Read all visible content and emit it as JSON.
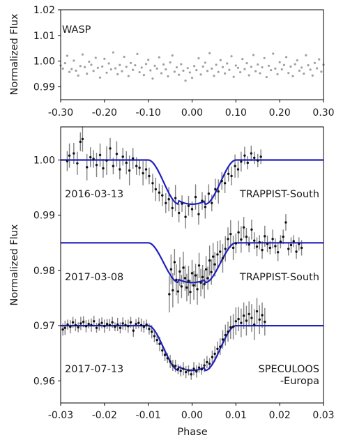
{
  "chart_data": [
    {
      "type": "scatter",
      "panel": "top",
      "label": "WASP",
      "ylabel": "Normalized Flux",
      "xlim": [
        -0.3,
        0.3
      ],
      "ylim": [
        0.985,
        1.02
      ],
      "xticks": [
        -0.3,
        -0.2,
        -0.1,
        0.0,
        0.1,
        0.2,
        0.3
      ],
      "xtick_labels": [
        "-0.30",
        "-0.20",
        "-0.10",
        "0.00",
        "0.10",
        "0.20",
        "0.30"
      ],
      "yticks": [
        0.99,
        1.0,
        1.01,
        1.02
      ],
      "ytick_labels": [
        "0.99",
        "1.00",
        "1.01",
        "1.02"
      ],
      "points_color": "#a0a0a0",
      "grid": false,
      "series": [
        {
          "x": [
            -0.3,
            -0.295,
            -0.29,
            -0.285,
            -0.28,
            -0.275,
            -0.27,
            -0.265,
            -0.26,
            -0.255,
            -0.25,
            -0.245,
            -0.24,
            -0.235,
            -0.23,
            -0.225,
            -0.22,
            -0.215,
            -0.21,
            -0.205,
            -0.2,
            -0.195,
            -0.19,
            -0.185,
            -0.18,
            -0.175,
            -0.17,
            -0.165,
            -0.16,
            -0.155,
            -0.15,
            -0.145,
            -0.14,
            -0.135,
            -0.13,
            -0.125,
            -0.12,
            -0.115,
            -0.11,
            -0.105,
            -0.1,
            -0.095,
            -0.09,
            -0.085,
            -0.08,
            -0.075,
            -0.07,
            -0.065,
            -0.06,
            -0.055,
            -0.05,
            -0.045,
            -0.04,
            -0.035,
            -0.03,
            -0.025,
            -0.02,
            -0.015,
            -0.01,
            -0.005,
            0.0,
            0.005,
            0.01,
            0.015,
            0.02,
            0.025,
            0.03,
            0.035,
            0.04,
            0.045,
            0.05,
            0.055,
            0.06,
            0.065,
            0.07,
            0.075,
            0.08,
            0.085,
            0.09,
            0.095,
            0.1,
            0.105,
            0.11,
            0.115,
            0.12,
            0.125,
            0.13,
            0.135,
            0.14,
            0.145,
            0.15,
            0.155,
            0.16,
            0.165,
            0.17,
            0.175,
            0.18,
            0.185,
            0.19,
            0.195,
            0.2,
            0.205,
            0.21,
            0.215,
            0.22,
            0.225,
            0.23,
            0.235,
            0.24,
            0.245,
            0.25,
            0.255,
            0.26,
            0.265,
            0.27,
            0.275,
            0.28,
            0.285,
            0.29,
            0.295,
            0.3
          ],
          "y": [
            0.9983,
            0.9971,
            0.9992,
            1.0021,
            0.9958,
            0.9969,
            1.0002,
            0.9963,
            0.9944,
            0.9981,
            1.0026,
            0.9977,
            0.9951,
            0.9998,
            0.9986,
            0.9962,
            1.0013,
            0.9974,
            0.9936,
            0.9979,
            1.0009,
            0.9955,
            0.9991,
            0.9968,
            1.0034,
            0.9972,
            0.9949,
            0.9985,
            0.9961,
            1.0017,
            0.9978,
            0.9942,
            0.9993,
            0.9966,
            0.9984,
            1.0028,
            0.9957,
            0.9975,
            0.9946,
            0.9989,
            1.0005,
            0.9964,
            0.9932,
            0.9982,
            0.9971,
            1.0015,
            0.9953,
            0.9987,
            0.9968,
            0.9941,
            0.9995,
            1.0022,
            0.9959,
            0.9976,
            0.9947,
            0.9988,
            0.9963,
            0.9924,
            0.9973,
            0.9956,
            0.9935,
            0.9981,
            0.9965,
            1.0011,
            0.9948,
            0.9979,
            0.9994,
            0.9962,
            1.0031,
            0.9971,
            0.9943,
            0.9986,
            0.9958,
            1.0004,
            0.9977,
            0.9952,
            0.9991,
            0.9966,
            1.0019,
            0.9939,
            0.9983,
            0.9974,
            0.9957,
            1.0008,
            0.9969,
            0.9992,
            0.9945,
            0.9978,
            1.0024,
            0.9961,
            0.9987,
            0.9953,
            0.9976,
            1.0012,
            0.9938,
            0.9982,
            0.9965,
            1.0029,
            0.9971,
            0.9949,
            0.9996,
            0.9968,
            0.9985,
            1.0016,
            0.9954,
            0.9979,
            0.9942,
            0.9988,
            1.0003,
            0.9963,
            0.9975,
            0.9951,
            1.0023,
            0.9984,
            0.9967,
            0.9944,
            0.9993,
            0.9972,
            1.0007,
            0.9959,
            0.9986
          ]
        }
      ]
    },
    {
      "type": "scatter",
      "panel": "bottom",
      "xlabel": "Phase",
      "ylabel": "Normalized Flux",
      "xlim": [
        -0.03,
        0.03
      ],
      "ylim": [
        0.956,
        1.006
      ],
      "xticks": [
        -0.03,
        -0.02,
        -0.01,
        0.0,
        0.01,
        0.02,
        0.03
      ],
      "xtick_labels": [
        "-0.03",
        "-0.02",
        "-0.01",
        "0.00",
        "0.01",
        "0.02",
        "0.03"
      ],
      "yticks": [
        0.96,
        0.97,
        0.98,
        0.99,
        1.0
      ],
      "ytick_labels": [
        "0.96",
        "0.97",
        "0.98",
        "0.99",
        "1.00"
      ],
      "model_color": "#1f1fbf",
      "grid": false,
      "series": [
        {
          "date": "2016-03-13",
          "instrument": "TRAPPIST-South",
          "baseline": 1.0,
          "depth": 0.008,
          "x": [
            -0.0285,
            -0.028,
            -0.027,
            -0.0262,
            -0.0255,
            -0.025,
            -0.024,
            -0.0232,
            -0.0225,
            -0.0218,
            -0.021,
            -0.0203,
            -0.0195,
            -0.0187,
            -0.018,
            -0.0172,
            -0.0165,
            -0.0158,
            -0.015,
            -0.0143,
            -0.0135,
            -0.0127,
            -0.012,
            -0.0112,
            -0.0105,
            -0.0098,
            -0.009,
            -0.0083,
            -0.0075,
            -0.0068,
            -0.006,
            -0.0053,
            -0.0045,
            -0.0038,
            -0.003,
            -0.0023,
            -0.0015,
            -0.0008,
            0.0,
            0.0008,
            0.0015,
            0.0023,
            0.003,
            0.0038,
            0.0045,
            0.0053,
            0.006,
            0.0068,
            0.0075,
            0.0083,
            0.009,
            0.0098,
            0.0105,
            0.0112,
            0.012,
            0.0127,
            0.0135,
            0.0142,
            0.015,
            0.0157
          ],
          "y": [
            0.9998,
            1.0008,
            1.0012,
            0.9994,
            1.0033,
            1.0038,
            0.9987,
            1.0005,
            1.0002,
            0.9991,
            1.0009,
            0.9985,
            0.9999,
            1.0021,
            0.9989,
            1.0011,
            0.9983,
            1.0006,
            0.9995,
            0.9981,
            1.0003,
            0.9989,
            0.9986,
            0.9976,
            0.9983,
            0.9971,
            0.9958,
            0.9947,
            0.9941,
            0.9936,
            0.9922,
            0.9929,
            0.9913,
            0.9931,
            0.9904,
            0.9921,
            0.9897,
            0.9917,
            0.9911,
            0.9933,
            0.9902,
            0.9926,
            0.9915,
            0.9939,
            0.9922,
            0.9947,
            0.9943,
            0.9962,
            0.9958,
            0.9975,
            0.9971,
            0.9989,
            0.9983,
            0.9997,
            1.0008,
            0.9995,
            1.0012,
            1.0004,
            0.9999,
            1.0006
          ],
          "err": [
            0.0018,
            0.0022,
            0.0019,
            0.0021,
            0.0017,
            0.0023,
            0.0024,
            0.0018,
            0.0016,
            0.0022,
            0.0021,
            0.0017,
            0.0026,
            0.0019,
            0.0015,
            0.0023,
            0.0018,
            0.0016,
            0.0021,
            0.0027,
            0.0019,
            0.0016,
            0.0014,
            0.0022,
            0.0018,
            0.0015,
            0.0017,
            0.0021,
            0.0016,
            0.0019,
            0.0018,
            0.0022,
            0.0016,
            0.0024,
            0.0017,
            0.0015,
            0.0021,
            0.0018,
            0.0014,
            0.0023,
            0.0019,
            0.0016,
            0.0021,
            0.0017,
            0.0015,
            0.0019,
            0.0022,
            0.0016,
            0.0018,
            0.0014,
            0.0017,
            0.0021,
            0.0015,
            0.0018,
            0.0016,
            0.0012,
            0.0014,
            0.0011,
            0.0012,
            0.0013
          ]
        },
        {
          "date": "2017-03-08",
          "instrument": "TRAPPIST-South",
          "baseline": 0.985,
          "depth": 0.0072,
          "x": [
            -0.0052,
            -0.0048,
            -0.0044,
            -0.004,
            -0.0036,
            -0.0032,
            -0.0028,
            -0.0024,
            -0.002,
            -0.0016,
            -0.0012,
            -0.0008,
            -0.0004,
            0.0,
            0.0004,
            0.0008,
            0.0012,
            0.0016,
            0.002,
            0.0024,
            0.0028,
            0.0032,
            0.0036,
            0.004,
            0.0044,
            0.0048,
            0.0052,
            0.0058,
            0.0064,
            0.007,
            0.0076,
            0.0082,
            0.0088,
            0.0094,
            0.01,
            0.0106,
            0.0112,
            0.0118,
            0.0124,
            0.013,
            0.0136,
            0.0142,
            0.0148,
            0.0154,
            0.016,
            0.0166,
            0.0172,
            0.0178,
            0.0184,
            0.019,
            0.0196,
            0.0202,
            0.0208,
            0.0214,
            0.022,
            0.0226,
            0.0232,
            0.0238,
            0.0244,
            0.025
          ],
          "y": [
            0.9757,
            0.9802,
            0.9764,
            0.9815,
            0.9783,
            0.9762,
            0.9798,
            0.9771,
            0.9805,
            0.9786,
            0.9769,
            0.9781,
            0.9761,
            0.9795,
            0.9773,
            0.9791,
            0.9766,
            0.9809,
            0.9778,
            0.9788,
            0.9775,
            0.9802,
            0.9786,
            0.9818,
            0.9797,
            0.9825,
            0.9811,
            0.9829,
            0.9834,
            0.9822,
            0.9839,
            0.9857,
            0.9866,
            0.9841,
            0.9849,
            0.9869,
            0.9856,
            0.9878,
            0.9861,
            0.9847,
            0.9874,
            0.9854,
            0.9843,
            0.9851,
            0.9837,
            0.9862,
            0.9848,
            0.9841,
            0.9857,
            0.9844,
            0.9833,
            0.9852,
            0.9861,
            0.9887,
            0.9839,
            0.9846,
            0.9853,
            0.9834,
            0.9848,
            0.9841
          ],
          "err": [
            0.0033,
            0.0027,
            0.0031,
            0.0024,
            0.0028,
            0.0022,
            0.0026,
            0.0021,
            0.0029,
            0.0023,
            0.0025,
            0.0027,
            0.0022,
            0.0024,
            0.0026,
            0.0021,
            0.0028,
            0.0023,
            0.0025,
            0.0022,
            0.0026,
            0.0024,
            0.0021,
            0.0027,
            0.0023,
            0.0025,
            0.0022,
            0.0024,
            0.0021,
            0.0026,
            0.0023,
            0.0021,
            0.0025,
            0.0022,
            0.0018,
            0.0021,
            0.0024,
            0.0019,
            0.0016,
            0.0014,
            0.0018,
            0.0015,
            0.0017,
            0.0013,
            0.0016,
            0.0019,
            0.0015,
            0.0012,
            0.0017,
            0.0014,
            0.0016,
            0.0012,
            0.0013,
            0.0015,
            0.0012,
            0.0014,
            0.0011,
            0.0013,
            0.0012,
            0.0014
          ]
        },
        {
          "date": "2017-07-13",
          "instrument": "SPECULOOS\n-Europa",
          "baseline": 0.97,
          "depth": 0.0081,
          "x": [
            -0.0295,
            -0.029,
            -0.0284,
            -0.0278,
            -0.0272,
            -0.0266,
            -0.026,
            -0.0254,
            -0.0248,
            -0.0242,
            -0.0236,
            -0.023,
            -0.0224,
            -0.0218,
            -0.0212,
            -0.0206,
            -0.02,
            -0.0194,
            -0.0188,
            -0.0182,
            -0.0176,
            -0.017,
            -0.0164,
            -0.0158,
            -0.0152,
            -0.0146,
            -0.014,
            -0.0134,
            -0.0128,
            -0.0122,
            -0.0116,
            -0.011,
            -0.0104,
            -0.0098,
            -0.0092,
            -0.0086,
            -0.008,
            -0.0074,
            -0.0068,
            -0.0062,
            -0.0056,
            -0.005,
            -0.0044,
            -0.0038,
            -0.0032,
            -0.0026,
            -0.002,
            -0.0014,
            -0.0008,
            -0.0002,
            0.0004,
            0.001,
            0.0016,
            0.0022,
            0.0028,
            0.0034,
            0.004,
            0.0046,
            0.0052,
            0.0058,
            0.0064,
            0.007,
            0.0076,
            0.0082,
            0.0088,
            0.0094,
            0.01,
            0.0106,
            0.0112,
            0.0118,
            0.0124,
            0.013,
            0.0136,
            0.0142,
            0.0148,
            0.0154,
            0.016,
            0.0166
          ],
          "y": [
            0.9693,
            0.9696,
            0.9702,
            0.9698,
            0.9706,
            0.9701,
            0.9697,
            0.9704,
            0.9707,
            0.9699,
            0.9703,
            0.9701,
            0.9708,
            0.9696,
            0.9702,
            0.9705,
            0.9699,
            0.9703,
            0.9701,
            0.9706,
            0.9698,
            0.9702,
            0.9696,
            0.9704,
            0.9701,
            0.9699,
            0.9706,
            0.9691,
            0.9703,
            0.9705,
            0.9701,
            0.9698,
            0.9702,
            0.9694,
            0.9689,
            0.9681,
            0.9674,
            0.9667,
            0.9655,
            0.9647,
            0.9641,
            0.9635,
            0.9628,
            0.9627,
            0.9621,
            0.9618,
            0.9622,
            0.9616,
            0.9619,
            0.9612,
            0.9622,
            0.9617,
            0.9624,
            0.9621,
            0.9628,
            0.9634,
            0.9631,
            0.9643,
            0.9649,
            0.9658,
            0.9662,
            0.9675,
            0.9683,
            0.9689,
            0.9697,
            0.9698,
            0.9708,
            0.9712,
            0.9705,
            0.9718,
            0.9709,
            0.9721,
            0.9714,
            0.9702,
            0.9726,
            0.9711,
            0.9719,
            0.9707
          ],
          "err": [
            0.0011,
            0.0013,
            0.0009,
            0.0012,
            0.001,
            0.0011,
            0.0009,
            0.0012,
            0.001,
            0.0011,
            0.0008,
            0.0012,
            0.001,
            0.0009,
            0.0011,
            0.001,
            0.0012,
            0.0009,
            0.0011,
            0.001,
            0.0008,
            0.0012,
            0.001,
            0.0011,
            0.0009,
            0.0012,
            0.001,
            0.0011,
            0.0009,
            0.001,
            0.0012,
            0.0011,
            0.0009,
            0.001,
            0.0012,
            0.0011,
            0.0009,
            0.0013,
            0.001,
            0.0011,
            0.0009,
            0.0012,
            0.001,
            0.0011,
            0.0009,
            0.001,
            0.0012,
            0.0011,
            0.0009,
            0.001,
            0.0012,
            0.0011,
            0.0009,
            0.001,
            0.0012,
            0.0011,
            0.001,
            0.0012,
            0.0014,
            0.0013,
            0.0015,
            0.0017,
            0.0019,
            0.0018,
            0.0021,
            0.0023,
            0.0025,
            0.0022,
            0.0026,
            0.0024,
            0.0027,
            0.0023,
            0.0025,
            0.0028,
            0.0024,
            0.0026,
            0.0023,
            0.0025
          ]
        }
      ]
    }
  ]
}
